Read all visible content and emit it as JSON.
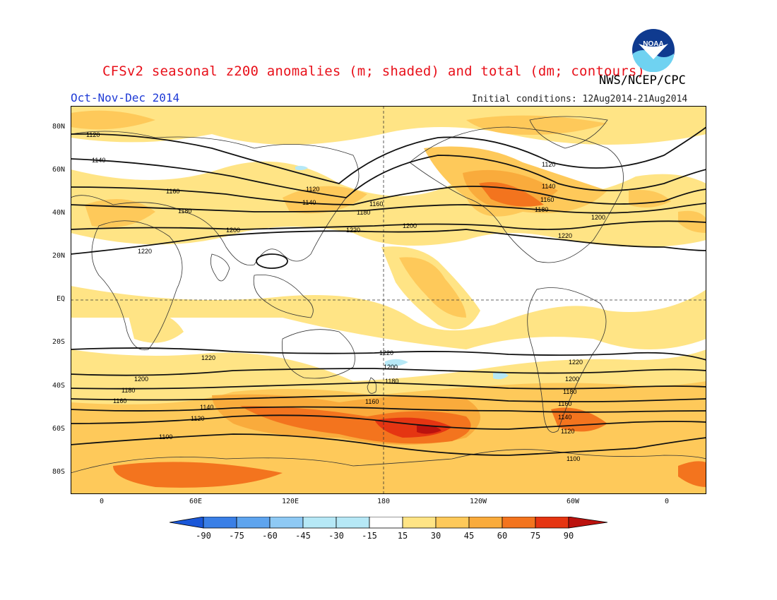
{
  "header": {
    "title": "CFSv2 seasonal z200 anomalies (m; shaded) and total (dm; contours)",
    "agency": "NWS/NCEP/CPC",
    "season": "Oct-Nov-Dec 2014",
    "initial_conditions": "Initial conditions: 12Aug2014-21Aug2014"
  },
  "logo": {
    "icon": "noaa-logo-icon",
    "text": "NOAA"
  },
  "map": {
    "lat_ticks": [
      "80N",
      "60N",
      "40N",
      "20N",
      "EQ",
      "20S",
      "40S",
      "60S",
      "80S"
    ],
    "lon_ticks": [
      "0",
      "60E",
      "120E",
      "180",
      "120W",
      "60W",
      "0"
    ],
    "colors": {
      "neg90": "#1a57d8",
      "neg75": "#3a7fe6",
      "neg60": "#5ea4ee",
      "neg45": "#8ec9f4",
      "neg30": "#b6e8f6",
      "neg15": "#ffffff",
      "pos15": "#ffe485",
      "pos30": "#fec95a",
      "pos45": "#f9ab3c",
      "pos60": "#f3741e",
      "pos75": "#e53512",
      "pos90": "#bb120e"
    },
    "contour_labels": {
      "c1120_w": "1120",
      "c1140_w": "1140",
      "c1160_w": "1160",
      "c1180_w": "1180",
      "c1200_w": "1200",
      "c1220_w": "1220",
      "c1120_pac": "1120",
      "c1140_pac": "1140",
      "c1180_pac": "1180",
      "c1160_pac": "1160",
      "c1220_pac": "1220",
      "c1200_pac": "1200",
      "c1120_na": "1120",
      "c1140_na": "1140",
      "c1160_na": "1160",
      "c1180_na": "1180",
      "c1200_na": "1200",
      "c1220_na": "1220",
      "s1220_a": "1220",
      "s1200_a": "1200",
      "s1180_a": "1180",
      "s1160_a": "1160",
      "s1140_a": "1140",
      "s1120_a": "1120",
      "s1100_a": "1100",
      "s1220_p": "1220",
      "s1200_p": "1200",
      "s1180_p": "1180",
      "s1160_p": "1160",
      "s1220_sa": "1220",
      "s1200_sa": "1200",
      "s1180_sa": "1180",
      "s1160_sa": "1160",
      "s1140_sa": "1140",
      "s1120_sa": "1120",
      "s1100_sa": "1100"
    }
  },
  "colorbar": {
    "labels": [
      "-90",
      "-75",
      "-60",
      "-45",
      "-30",
      "-15",
      "15",
      "30",
      "45",
      "60",
      "75",
      "90"
    ]
  }
}
